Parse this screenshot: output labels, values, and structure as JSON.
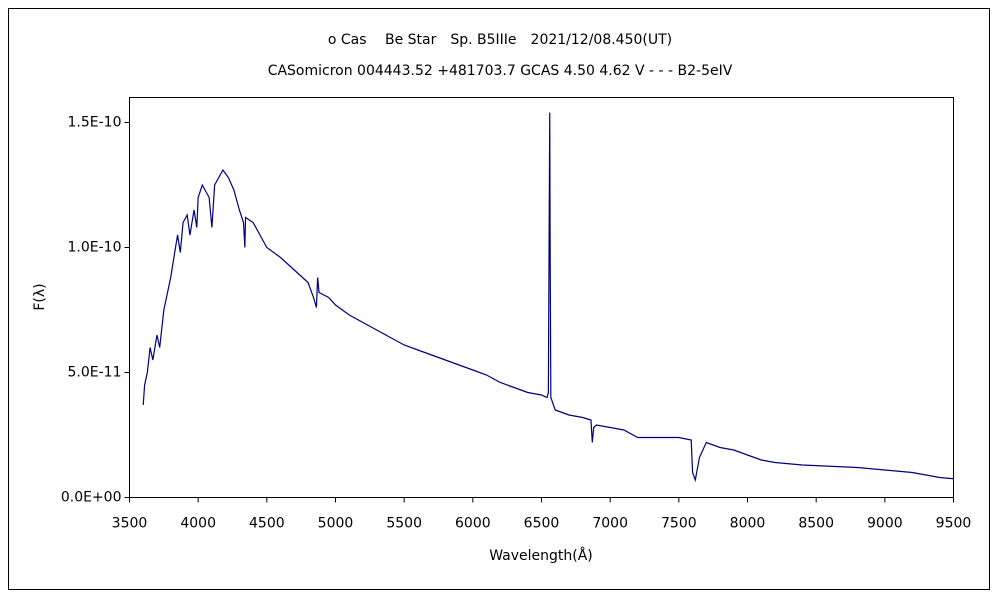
{
  "chart_data": {
    "type": "line",
    "title": "ο Cas　 Be Star　Sp. B5IIIe　2021/12/08.450(UT)",
    "subtitle": "CASomicron 004443.52 +481703.7 GCAS 4.50 4.62 V - - - B2-5eIV",
    "x_label": "Wavelength(Å)",
    "y_label": "F(λ)",
    "x": [
      3600,
      3610,
      3630,
      3650,
      3670,
      3700,
      3720,
      3750,
      3800,
      3835,
      3850,
      3870,
      3890,
      3920,
      3940,
      3970,
      3990,
      4000,
      4030,
      4050,
      4080,
      4100,
      4120,
      4150,
      4180,
      4220,
      4260,
      4300,
      4330,
      4340,
      4345,
      4400,
      4450,
      4500,
      4600,
      4700,
      4800,
      4840,
      4861,
      4870,
      4880,
      4950,
      5000,
      5100,
      5200,
      5300,
      5400,
      5500,
      5600,
      5700,
      5800,
      5900,
      6000,
      6100,
      6200,
      6300,
      6400,
      6500,
      6540,
      6550,
      6555,
      6560,
      6563,
      6568,
      6600,
      6700,
      6800,
      6860,
      6870,
      6880,
      6900,
      7000,
      7100,
      7200,
      7300,
      7500,
      7590,
      7600,
      7620,
      7650,
      7700,
      7800,
      7900,
      8000,
      8100,
      8200,
      8400,
      8600,
      8800,
      9000,
      9200,
      9400,
      9500
    ],
    "series": [
      {
        "color": "#000080",
        "values": [
          3.7e-11,
          4.5e-11,
          5e-11,
          6e-11,
          5.5e-11,
          6.5e-11,
          6e-11,
          7.5e-11,
          8.8e-11,
          1e-10,
          1.05e-10,
          9.8e-11,
          1.1e-10,
          1.13e-10,
          1.05e-10,
          1.15e-10,
          1.08e-10,
          1.2e-10,
          1.25e-10,
          1.23e-10,
          1.2e-10,
          1.08e-10,
          1.25e-10,
          1.28e-10,
          1.31e-10,
          1.28e-10,
          1.23e-10,
          1.15e-10,
          1.1e-10,
          1e-10,
          1.12e-10,
          1.1e-10,
          1.05e-10,
          1e-10,
          9.6e-11,
          9.1e-11,
          8.6e-11,
          8e-11,
          7.6e-11,
          8.8e-11,
          8.2e-11,
          8e-11,
          7.7e-11,
          7.3e-11,
          7e-11,
          6.7e-11,
          6.4e-11,
          6.1e-11,
          5.9e-11,
          5.7e-11,
          5.5e-11,
          5.3e-11,
          5.1e-11,
          4.9e-11,
          4.6e-11,
          4.4e-11,
          4.2e-11,
          4.1e-11,
          4e-11,
          4.2e-11,
          1e-10,
          1.54e-10,
          1e-10,
          4e-11,
          3.5e-11,
          3.3e-11,
          3.2e-11,
          3.1e-11,
          2.2e-11,
          2.8e-11,
          2.9e-11,
          2.8e-11,
          2.7e-11,
          2.4e-11,
          2.4e-11,
          2.4e-11,
          2.3e-11,
          1e-11,
          7e-12,
          1.6e-11,
          2.2e-11,
          2e-11,
          1.9e-11,
          1.7e-11,
          1.5e-11,
          1.4e-11,
          1.3e-11,
          1.25e-11,
          1.2e-11,
          1.1e-11,
          1e-11,
          8e-12,
          7.5e-12
        ]
      }
    ],
    "xlim": [
      3500,
      9500
    ],
    "xticks": [
      3500,
      4000,
      4500,
      5000,
      5500,
      6000,
      6500,
      7000,
      7500,
      8000,
      8500,
      9000,
      9500
    ],
    "ylim": [
      0,
      1.6e-10
    ],
    "yticks": [
      {
        "value": 0,
        "label": "0.0E+00"
      },
      {
        "value": 5e-11,
        "label": "5.0E-11"
      },
      {
        "value": 1e-10,
        "label": "1.0E-10"
      },
      {
        "value": 1.5e-10,
        "label": "1.5E-10"
      }
    ],
    "grid": false
  }
}
